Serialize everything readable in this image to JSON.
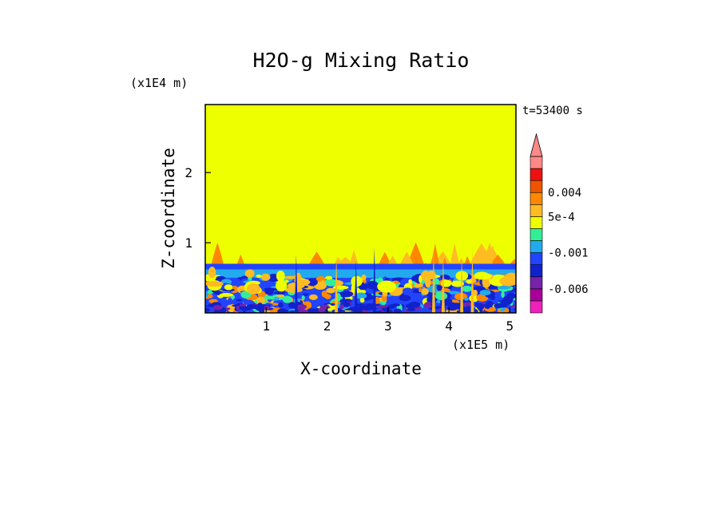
{
  "chart_data": {
    "type": "heatmap",
    "title": "H2O-g Mixing Ratio",
    "xlabel": "X-coordinate",
    "ylabel": "Z-coordinate",
    "x_units": "(x1E5 m)",
    "y_units": "(x1E4 m)",
    "time_label": "t=53400 s",
    "xlim": [
      0,
      5.1
    ],
    "ylim": [
      0,
      2.97
    ],
    "x_ticks": [
      1,
      2,
      3,
      4,
      5
    ],
    "y_ticks": [
      1,
      2
    ],
    "x_tick_labels": [
      "1",
      "2",
      "3",
      "4",
      "5"
    ],
    "y_tick_labels": [
      "1",
      "2"
    ],
    "field": {
      "background_level": 0,
      "dark_band_top": 0.7,
      "cyan_band": [
        0.5,
        0.62
      ],
      "plume_top": 1.03
    },
    "colorbar": {
      "colors": [
        "#ee22bb",
        "#aa0099",
        "#7722aa",
        "#1122cc",
        "#2244ff",
        "#22aaee",
        "#33ee99",
        "#eeff00",
        "#ffbb22",
        "#ff8800",
        "#ee5500",
        "#ee1111",
        "#ff8888"
      ],
      "labels": [
        "-0.006",
        "-0.001",
        "5e-4",
        "0.004"
      ]
    }
  }
}
